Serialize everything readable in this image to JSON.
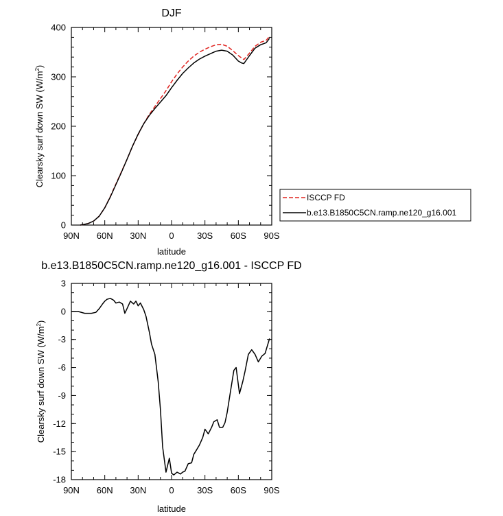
{
  "chart_data": [
    {
      "type": "line",
      "title": "DJF",
      "xlabel": "latitude",
      "ylabel": "Clearsky surf down SW (W/m",
      "ylabel_sup": "2",
      "ylabel_end": ")",
      "xlim": [
        90,
        -90
      ],
      "ylim": [
        0,
        400
      ],
      "x_ticks": [
        90,
        60,
        30,
        0,
        -30,
        -60,
        -90
      ],
      "x_tick_labels": [
        "90N",
        "60N",
        "30N",
        "0",
        "30S",
        "60S",
        "90S"
      ],
      "y_ticks": [
        0,
        100,
        200,
        300,
        400
      ],
      "y_tick_labels": [
        "0",
        "100",
        "200",
        "300",
        "400"
      ],
      "legend": "right",
      "series": [
        {
          "name": "ISCCP FD",
          "color": "#e0231f",
          "dash": "dashed",
          "x": [
            82,
            75,
            70,
            65,
            60,
            55,
            50,
            45,
            40,
            35,
            30,
            25,
            20,
            15,
            10,
            5,
            0,
            -5,
            -10,
            -15,
            -20,
            -25,
            -30,
            -35,
            -40,
            -45,
            -50,
            -55,
            -60,
            -63,
            -65,
            -70,
            -75,
            -80,
            -85,
            -88
          ],
          "y": [
            0,
            3,
            8,
            18,
            35,
            58,
            83,
            108,
            133,
            160,
            183,
            205,
            224,
            240,
            256,
            272,
            290,
            306,
            320,
            332,
            342,
            350,
            356,
            361,
            365,
            366,
            362,
            353,
            343,
            338,
            335,
            348,
            362,
            370,
            374,
            382
          ]
        },
        {
          "name": "b.e13.B1850C5CN.ramp.ne120_g16.001",
          "color": "#000000",
          "dash": "solid",
          "x": [
            82,
            75,
            70,
            65,
            60,
            55,
            50,
            45,
            40,
            35,
            30,
            25,
            20,
            15,
            10,
            5,
            0,
            -5,
            -10,
            -15,
            -20,
            -25,
            -30,
            -35,
            -40,
            -45,
            -50,
            -55,
            -60,
            -63,
            -65,
            -70,
            -75,
            -80,
            -85,
            -88
          ],
          "y": [
            0,
            3,
            8,
            18,
            35,
            57,
            82,
            107,
            133,
            160,
            184,
            205,
            222,
            236,
            249,
            262,
            278,
            293,
            307,
            318,
            328,
            336,
            342,
            347,
            352,
            354,
            352,
            344,
            332,
            328,
            327,
            343,
            358,
            365,
            369,
            378
          ]
        }
      ]
    },
    {
      "type": "line",
      "title": "b.e13.B1850C5CN.ramp.ne120_g16.001 - ISCCP FD",
      "xlabel": "latitude",
      "ylabel": "Clearsky surf down SW (W/m",
      "ylabel_sup": "2",
      "ylabel_end": ")",
      "xlim": [
        90,
        -90
      ],
      "ylim": [
        -18,
        3
      ],
      "x_ticks": [
        90,
        60,
        30,
        0,
        -30,
        -60,
        -90
      ],
      "x_tick_labels": [
        "90N",
        "60N",
        "30N",
        "0",
        "30S",
        "60S",
        "90S"
      ],
      "y_ticks": [
        3,
        0,
        -3,
        -6,
        -9,
        -12,
        -15,
        -18
      ],
      "y_tick_labels": [
        "3",
        "0",
        "-3",
        "-6",
        "-9",
        "-12",
        "-15",
        "-18"
      ],
      "series": [
        {
          "color": "#000000",
          "dash": "solid",
          "x": [
            90,
            84,
            78,
            72,
            68,
            65,
            62,
            60,
            58,
            55,
            52,
            50,
            47,
            44,
            42,
            40,
            37,
            34,
            32,
            30,
            28,
            25,
            23,
            20,
            18,
            15,
            12,
            10,
            8,
            5,
            2,
            0,
            -2,
            -5,
            -8,
            -10,
            -12,
            -15,
            -18,
            -20,
            -22,
            -25,
            -28,
            -30,
            -33,
            -36,
            -38,
            -41,
            -43,
            -46,
            -48,
            -50,
            -53,
            -56,
            -58,
            -61,
            -64,
            -66,
            -69,
            -72,
            -75,
            -78,
            -81,
            -84,
            -88
          ],
          "y": [
            0,
            0,
            -0.2,
            -0.2,
            -0.1,
            0.3,
            0.8,
            1.1,
            1.3,
            1.4,
            1.2,
            0.9,
            1.0,
            0.8,
            -0.2,
            0.3,
            1.1,
            0.8,
            1.1,
            0.6,
            0.9,
            0.2,
            -0.5,
            -2.2,
            -3.5,
            -4.6,
            -7.5,
            -10.5,
            -14.5,
            -17.2,
            -15.7,
            -17.3,
            -17.5,
            -17.2,
            -17.4,
            -17.2,
            -17.1,
            -16.3,
            -16.2,
            -15.3,
            -14.9,
            -14.3,
            -13.5,
            -12.6,
            -13.1,
            -12.4,
            -11.8,
            -11.6,
            -12.4,
            -12.4,
            -11.9,
            -10.8,
            -8.5,
            -6.3,
            -6.0,
            -8.8,
            -7.5,
            -6.4,
            -4.6,
            -4.1,
            -4.6,
            -5.4,
            -4.8,
            -4.5,
            -2.9
          ]
        }
      ]
    }
  ]
}
